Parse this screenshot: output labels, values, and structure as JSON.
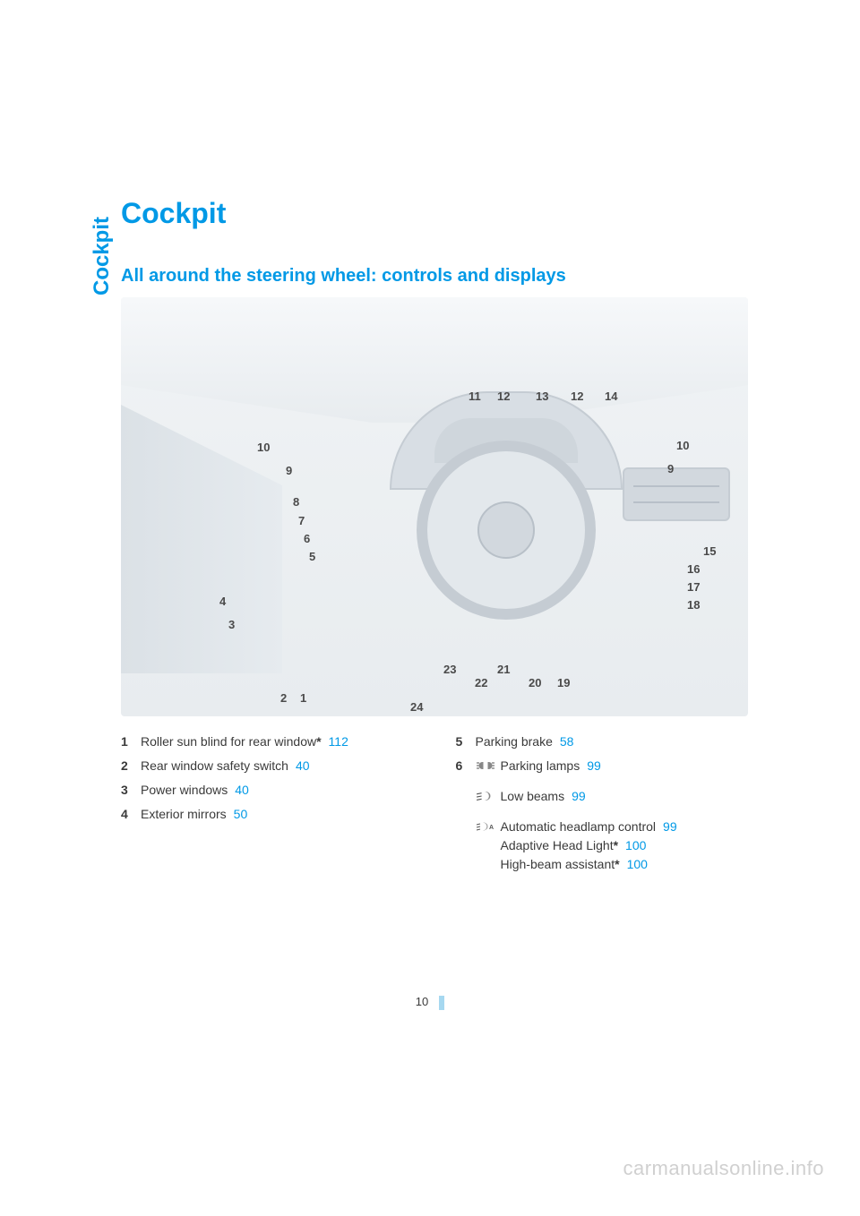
{
  "side_label": "Cockpit",
  "title": "Cockpit",
  "subtitle": "All around the steering wheel: controls and displays",
  "diagram": {
    "callouts_left": [
      {
        "n": "10",
        "cls": "c10l"
      },
      {
        "n": "9",
        "cls": "c9l"
      },
      {
        "n": "8",
        "cls": "c8"
      },
      {
        "n": "7",
        "cls": "c7"
      },
      {
        "n": "6",
        "cls": "c6"
      },
      {
        "n": "5",
        "cls": "c5"
      },
      {
        "n": "4",
        "cls": "c4"
      },
      {
        "n": "3",
        "cls": "c3"
      },
      {
        "n": "2",
        "cls": "c2"
      },
      {
        "n": "1",
        "cls": "c1"
      }
    ],
    "callouts_top": [
      {
        "n": "11",
        "cls": "c11t"
      },
      {
        "n": "12",
        "cls": "c12t"
      },
      {
        "n": "13",
        "cls": "c13t"
      },
      {
        "n": "12",
        "cls": "c12tb"
      },
      {
        "n": "14",
        "cls": "c14t"
      }
    ],
    "callouts_right": [
      {
        "n": "10",
        "cls": "c10r"
      },
      {
        "n": "9",
        "cls": "c9r"
      },
      {
        "n": "15",
        "cls": "c15"
      },
      {
        "n": "16",
        "cls": "c16"
      },
      {
        "n": "17",
        "cls": "c17"
      },
      {
        "n": "18",
        "cls": "c18"
      }
    ],
    "callouts_bottom": [
      {
        "n": "23",
        "cls": "c23"
      },
      {
        "n": "22",
        "cls": "c22"
      },
      {
        "n": "21",
        "cls": "c21"
      },
      {
        "n": "20",
        "cls": "c20"
      },
      {
        "n": "19",
        "cls": "c19"
      },
      {
        "n": "24",
        "cls": "c24"
      }
    ]
  },
  "legend": {
    "left": [
      {
        "num": "1",
        "text": "Roller sun blind for rear window",
        "star": true,
        "page": "112"
      },
      {
        "num": "2",
        "text": "Rear window safety switch",
        "star": false,
        "page": "40"
      },
      {
        "num": "3",
        "text": "Power windows",
        "star": false,
        "page": "40"
      },
      {
        "num": "4",
        "text": "Exterior mirrors",
        "star": false,
        "page": "50"
      }
    ],
    "right_simple": [
      {
        "num": "5",
        "text": "Parking brake",
        "star": false,
        "page": "58"
      }
    ],
    "right_six_num": "6",
    "right_six": [
      {
        "icon": "parking-lamps",
        "lines": [
          {
            "text": "Parking lamps",
            "star": false,
            "page": "99"
          }
        ]
      },
      {
        "icon": "low-beams",
        "lines": [
          {
            "text": "Low beams",
            "star": false,
            "page": "99"
          }
        ]
      },
      {
        "icon": "auto-headlamp",
        "lines": [
          {
            "text": "Automatic headlamp control",
            "star": false,
            "page": "99"
          },
          {
            "text": "Adaptive Head Light",
            "star": true,
            "page": "100"
          },
          {
            "text": "High-beam assistant",
            "star": true,
            "page": "100"
          }
        ]
      }
    ]
  },
  "page_number": "10",
  "watermark": "carmanualsonline.info"
}
